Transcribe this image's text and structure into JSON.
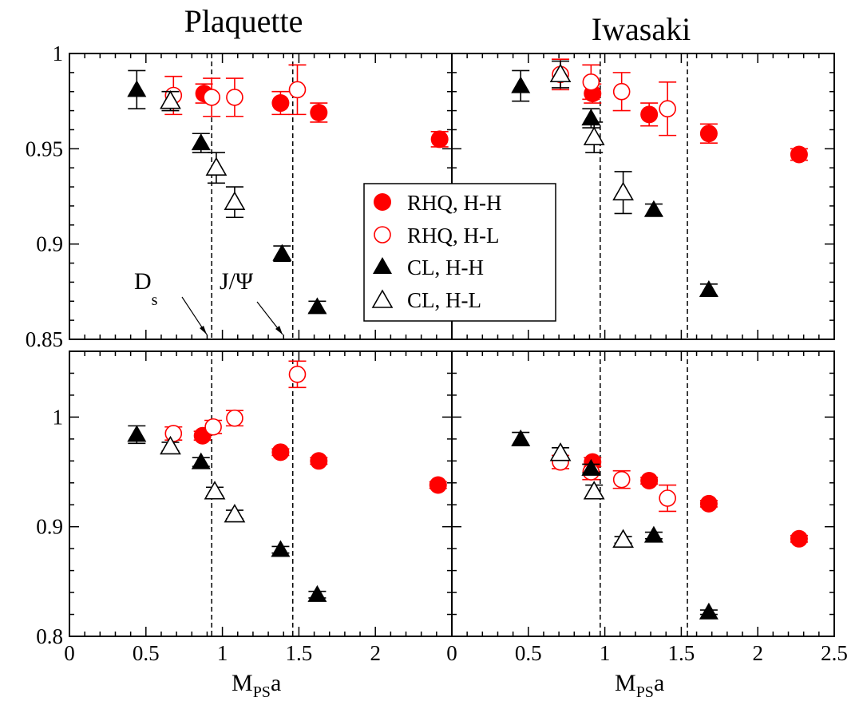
{
  "colors": {
    "rhq": "#ff0000",
    "cl": "#000000"
  },
  "panel_titles": {
    "plaquette": "Plaquette",
    "iwasaki": "Iwasaki"
  },
  "xlabel_main": "M",
  "xlabel_sub": "PS",
  "xlabel_tail": "a",
  "arrow_labels": {
    "ds_main": "D",
    "ds_sub": "s",
    "jpsi": "J/Ψ"
  },
  "legend": {
    "rhq_hh": "RHQ, H-H",
    "rhq_hl": "RHQ, H-L",
    "cl_hh": "CL, H-H",
    "cl_hl": "CL, H-L"
  },
  "chart_data": [
    {
      "type": "scatter",
      "title": "Plaquette",
      "xlim": [
        0,
        2.5
      ],
      "ylim": [
        0.85,
        1.0
      ],
      "xticks": [
        "0",
        "0.5",
        "1",
        "1.5",
        "2"
      ],
      "yticks": [
        "0.85",
        "0.9",
        "0.95",
        "1"
      ],
      "vlines": [
        0.93,
        1.46
      ],
      "series": [
        {
          "name": "RHQ, H-H",
          "marker": "circle",
          "filled": true,
          "color": "#ff0000",
          "points": [
            [
              0.88,
              0.979,
              0.005
            ],
            [
              1.38,
              0.974,
              0.006
            ],
            [
              1.63,
              0.969,
              0.005
            ],
            [
              2.42,
              0.955,
              0.004
            ]
          ]
        },
        {
          "name": "RHQ, H-L",
          "marker": "circle",
          "filled": false,
          "color": "#ff0000",
          "points": [
            [
              0.68,
              0.978,
              0.01
            ],
            [
              0.93,
              0.977,
              0.01
            ],
            [
              1.08,
              0.977,
              0.01
            ],
            [
              1.49,
              0.981,
              0.013
            ]
          ]
        },
        {
          "name": "CL, H-H",
          "marker": "triangle",
          "filled": true,
          "color": "#000000",
          "points": [
            [
              0.44,
              0.981,
              0.01
            ],
            [
              0.86,
              0.953,
              0.005
            ],
            [
              1.39,
              0.895,
              0.004
            ],
            [
              1.62,
              0.867,
              0.003
            ]
          ]
        },
        {
          "name": "CL, H-L",
          "marker": "triangle",
          "filled": false,
          "color": "#000000",
          "points": [
            [
              0.66,
              0.975,
              0.005
            ],
            [
              0.96,
              0.94,
              0.008
            ],
            [
              1.08,
              0.922,
              0.008
            ]
          ]
        }
      ]
    },
    {
      "type": "scatter",
      "title": "Iwasaki",
      "xlim": [
        0,
        2.5
      ],
      "ylim": [
        0.85,
        1.0
      ],
      "xticks": [
        "0",
        "0.5",
        "1",
        "1.5",
        "2",
        "2.5"
      ],
      "yticks": [],
      "vlines": [
        0.97,
        1.54
      ],
      "series": [
        {
          "name": "RHQ, H-H",
          "marker": "circle",
          "filled": true,
          "color": "#ff0000",
          "points": [
            [
              0.92,
              0.979,
              0.005
            ],
            [
              1.29,
              0.968,
              0.006
            ],
            [
              1.68,
              0.958,
              0.005
            ],
            [
              2.27,
              0.947,
              0.003
            ]
          ]
        },
        {
          "name": "RHQ, H-L",
          "marker": "circle",
          "filled": false,
          "color": "#ff0000",
          "points": [
            [
              0.71,
              0.989,
              0.008
            ],
            [
              0.91,
              0.985,
              0.009
            ],
            [
              1.11,
              0.98,
              0.01
            ],
            [
              1.41,
              0.971,
              0.014
            ]
          ]
        },
        {
          "name": "CL, H-H",
          "marker": "triangle",
          "filled": true,
          "color": "#000000",
          "points": [
            [
              0.45,
              0.983,
              0.008
            ],
            [
              0.91,
              0.966,
              0.005
            ],
            [
              1.32,
              0.918,
              0.003
            ],
            [
              1.68,
              0.876,
              0.003
            ]
          ]
        },
        {
          "name": "CL, H-L",
          "marker": "triangle",
          "filled": false,
          "color": "#000000",
          "points": [
            [
              0.71,
              0.989,
              0.007
            ],
            [
              0.93,
              0.956,
              0.008
            ],
            [
              1.12,
              0.927,
              0.011
            ]
          ]
        }
      ]
    },
    {
      "type": "scatter",
      "xlim": [
        0,
        2.5
      ],
      "ylim": [
        0.8,
        1.06
      ],
      "xticks": [
        "0",
        "0.5",
        "1",
        "1.5",
        "2"
      ],
      "yticks": [
        "0.8",
        "0.9",
        "1"
      ],
      "vlines": [
        0.93,
        1.46
      ],
      "series": [
        {
          "name": "RHQ, H-H",
          "marker": "circle",
          "filled": true,
          "color": "#ff0000",
          "points": [
            [
              0.87,
              0.983,
              0.004
            ],
            [
              1.38,
              0.968,
              0.003
            ],
            [
              1.63,
              0.96,
              0.003
            ],
            [
              2.41,
              0.938,
              0.003
            ]
          ]
        },
        {
          "name": "RHQ, H-L",
          "marker": "circle",
          "filled": false,
          "color": "#ff0000",
          "points": [
            [
              0.68,
              0.985,
              0.006
            ],
            [
              0.94,
              0.991,
              0.006
            ],
            [
              1.08,
              0.999,
              0.007
            ],
            [
              1.49,
              1.039,
              0.012
            ]
          ]
        },
        {
          "name": "CL, H-H",
          "marker": "triangle",
          "filled": true,
          "color": "#000000",
          "points": [
            [
              0.44,
              0.984,
              0.008
            ],
            [
              0.86,
              0.959,
              0.004
            ],
            [
              1.38,
              0.879,
              0.003
            ],
            [
              1.62,
              0.838,
              0.003
            ]
          ]
        },
        {
          "name": "CL, H-L",
          "marker": "triangle",
          "filled": false,
          "color": "#000000",
          "points": [
            [
              0.66,
              0.973,
              0.004
            ],
            [
              0.95,
              0.932,
              0.004
            ],
            [
              1.08,
              0.911,
              0.004
            ]
          ]
        }
      ]
    },
    {
      "type": "scatter",
      "xlim": [
        0,
        2.5
      ],
      "ylim": [
        0.8,
        1.06
      ],
      "xticks": [
        "0",
        "0.5",
        "1",
        "1.5",
        "2",
        "2.5"
      ],
      "yticks": [],
      "vlines": [
        0.97,
        1.54
      ],
      "series": [
        {
          "name": "RHQ, H-H",
          "marker": "circle",
          "filled": true,
          "color": "#ff0000",
          "points": [
            [
              0.92,
              0.959,
              0.004
            ],
            [
              1.29,
              0.942,
              0.003
            ],
            [
              1.68,
              0.921,
              0.003
            ],
            [
              2.27,
              0.889,
              0.003
            ]
          ]
        },
        {
          "name": "RHQ, H-L",
          "marker": "circle",
          "filled": false,
          "color": "#ff0000",
          "points": [
            [
              0.71,
              0.959,
              0.006
            ],
            [
              0.91,
              0.95,
              0.007
            ],
            [
              1.11,
              0.943,
              0.008
            ],
            [
              1.41,
              0.926,
              0.012
            ]
          ]
        },
        {
          "name": "CL, H-H",
          "marker": "triangle",
          "filled": true,
          "color": "#000000",
          "points": [
            [
              0.45,
              0.98,
              0.006
            ],
            [
              0.91,
              0.953,
              0.004
            ],
            [
              1.32,
              0.892,
              0.003
            ],
            [
              1.68,
              0.822,
              0.002
            ]
          ]
        },
        {
          "name": "CL, H-L",
          "marker": "triangle",
          "filled": false,
          "color": "#000000",
          "points": [
            [
              0.71,
              0.967,
              0.005
            ],
            [
              0.93,
              0.932,
              0.006
            ],
            [
              1.12,
              0.888,
              0.003
            ]
          ]
        }
      ]
    }
  ]
}
